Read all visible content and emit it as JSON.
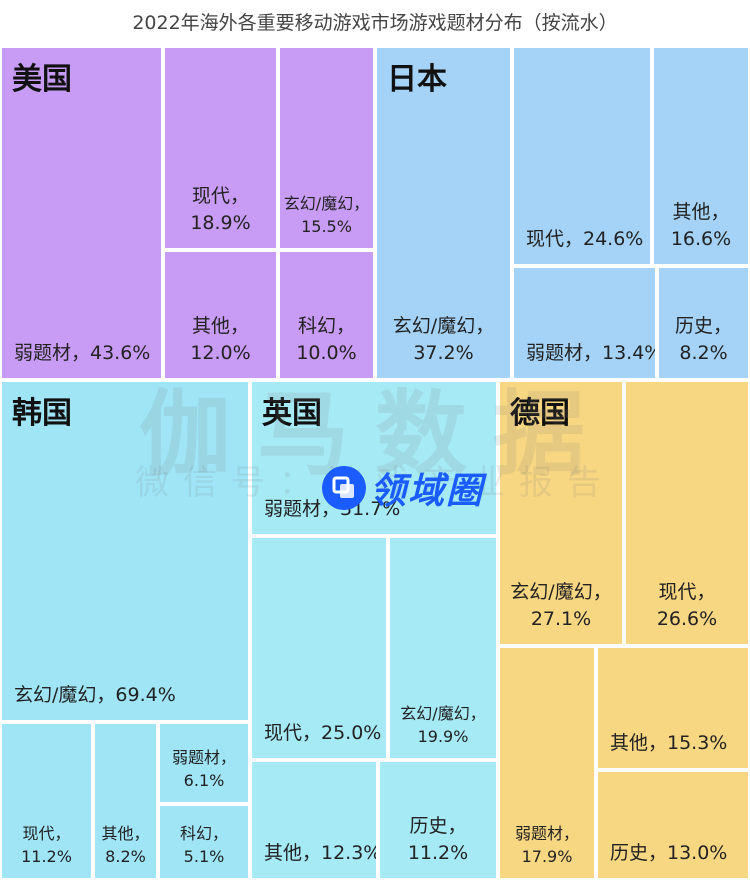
{
  "title": "2022年海外各重要移动游戏市场游戏题材分布（按流水）",
  "watermark": {
    "line1": "伽马数据",
    "line2": "微信号：游戏产业报告"
  },
  "brand": {
    "text": "领域圈"
  },
  "colors": {
    "usa": "#c89cf5",
    "japan": "#a4d3f7",
    "korea": "#9fe5f6",
    "uk": "#a6eaf6",
    "germany": "#f8d783",
    "brand": "#1a5cff"
  },
  "chart_data": {
    "type": "treemap",
    "title": "2022年海外各重要移动游戏市场游戏题材分布（按流水）",
    "markets": [
      {
        "key": "usa",
        "name": "美国",
        "segments": [
          {
            "label": "弱题材",
            "value": 43.6
          },
          {
            "label": "现代",
            "value": 18.9
          },
          {
            "label": "玄幻/魔幻",
            "value": 15.5
          },
          {
            "label": "其他",
            "value": 12.0
          },
          {
            "label": "科幻",
            "value": 10.0
          }
        ]
      },
      {
        "key": "japan",
        "name": "日本",
        "segments": [
          {
            "label": "玄幻/魔幻",
            "value": 37.2
          },
          {
            "label": "现代",
            "value": 24.6
          },
          {
            "label": "其他",
            "value": 16.6
          },
          {
            "label": "弱题材",
            "value": 13.4
          },
          {
            "label": "历史",
            "value": 8.2
          }
        ]
      },
      {
        "key": "korea",
        "name": "韩国",
        "segments": [
          {
            "label": "玄幻/魔幻",
            "value": 69.4
          },
          {
            "label": "现代",
            "value": 11.2
          },
          {
            "label": "其他",
            "value": 8.2
          },
          {
            "label": "弱题材",
            "value": 6.1
          },
          {
            "label": "科幻",
            "value": 5.1
          }
        ]
      },
      {
        "key": "uk",
        "name": "英国",
        "segments": [
          {
            "label": "弱题材",
            "value": 31.7
          },
          {
            "label": "现代",
            "value": 25.0
          },
          {
            "label": "玄幻/魔幻",
            "value": 19.9
          },
          {
            "label": "其他",
            "value": 12.3
          },
          {
            "label": "历史",
            "value": 11.2
          }
        ]
      },
      {
        "key": "germany",
        "name": "德国",
        "segments": [
          {
            "label": "玄幻/魔幻",
            "value": 27.1
          },
          {
            "label": "现代",
            "value": 26.6
          },
          {
            "label": "弱题材",
            "value": 17.9
          },
          {
            "label": "其他",
            "value": 15.3
          },
          {
            "label": "历史",
            "value": 13.0
          }
        ]
      }
    ]
  }
}
